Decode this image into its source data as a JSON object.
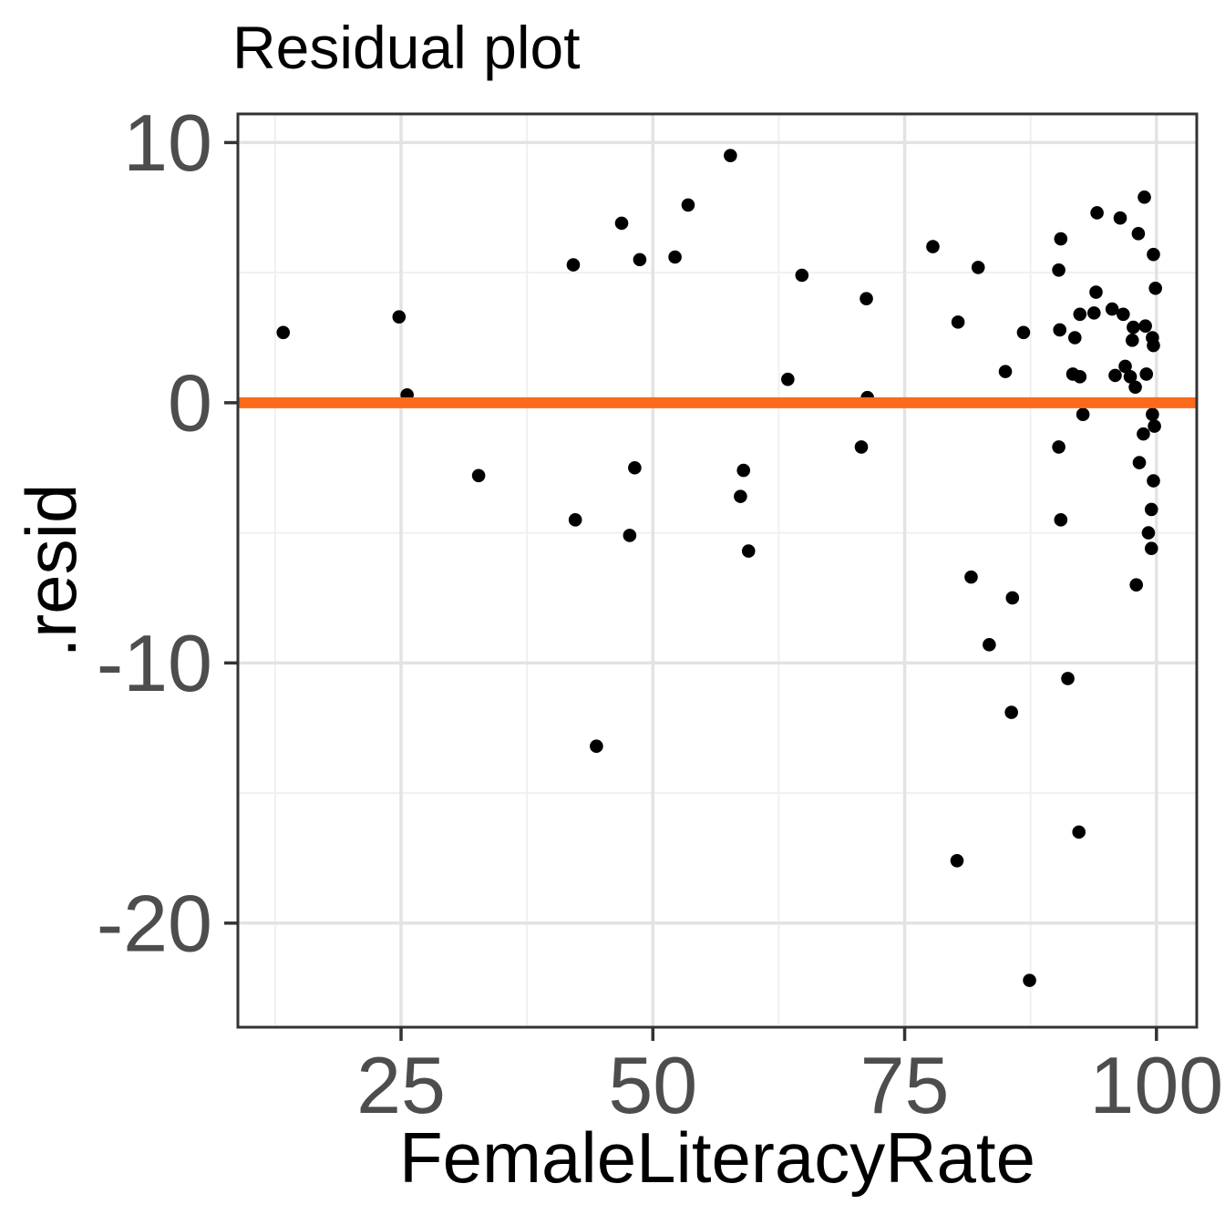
{
  "chart_data": {
    "type": "scatter",
    "title": "Residual plot",
    "xlabel": "FemaleLiteracyRate",
    "ylabel": ".resid",
    "legend": "none",
    "grid": "on",
    "x_axis": {
      "range": [
        8.8,
        104.0
      ],
      "major_ticks": [
        25,
        50,
        75,
        100
      ],
      "tick_labels": [
        "25",
        "50",
        "75",
        "100"
      ],
      "minor_gridlines": [
        12.5,
        37.5,
        62.5,
        87.5
      ]
    },
    "y_axis": {
      "range": [
        -24.0,
        11.1
      ],
      "major_ticks": [
        10,
        0,
        -10,
        -20
      ],
      "tick_labels": [
        "10",
        "0",
        "-10",
        "-20"
      ],
      "minor_gridlines": [
        5,
        -5,
        -15
      ]
    },
    "hline": {
      "y": 0
    },
    "points": [
      [
        13.3,
        2.7
      ],
      [
        24.8,
        3.3
      ],
      [
        25.6,
        0.3
      ],
      [
        32.7,
        -2.8
      ],
      [
        42.1,
        5.3
      ],
      [
        42.3,
        -4.5
      ],
      [
        44.4,
        -13.2
      ],
      [
        46.9,
        6.9
      ],
      [
        47.7,
        -5.1
      ],
      [
        48.2,
        -2.5
      ],
      [
        48.7,
        5.5
      ],
      [
        52.2,
        5.6
      ],
      [
        53.5,
        7.6
      ],
      [
        57.7,
        9.5
      ],
      [
        58.7,
        -3.6
      ],
      [
        59.0,
        -2.6
      ],
      [
        59.5,
        -5.7
      ],
      [
        63.4,
        0.9
      ],
      [
        64.8,
        4.9
      ],
      [
        70.7,
        -1.7
      ],
      [
        71.2,
        4.0
      ],
      [
        71.3,
        0.2
      ],
      [
        77.8,
        6.0
      ],
      [
        80.2,
        -17.6
      ],
      [
        80.3,
        3.1
      ],
      [
        81.6,
        -6.7
      ],
      [
        82.3,
        5.2
      ],
      [
        83.4,
        -9.3
      ],
      [
        85.0,
        1.2
      ],
      [
        85.6,
        -11.9
      ],
      [
        85.7,
        -7.5
      ],
      [
        86.8,
        2.7
      ],
      [
        87.4,
        -22.2
      ],
      [
        90.3,
        5.1
      ],
      [
        90.3,
        -1.7
      ],
      [
        90.4,
        2.8
      ],
      [
        90.5,
        6.3
      ],
      [
        90.5,
        -4.5
      ],
      [
        91.2,
        -10.6
      ],
      [
        91.7,
        1.1
      ],
      [
        91.9,
        2.5
      ],
      [
        92.3,
        -16.5
      ],
      [
        92.4,
        3.4
      ],
      [
        92.4,
        1.0
      ],
      [
        92.7,
        -0.45
      ],
      [
        93.8,
        3.45
      ],
      [
        94.0,
        4.25
      ],
      [
        94.1,
        7.3
      ],
      [
        95.6,
        3.6
      ],
      [
        95.9,
        1.05
      ],
      [
        96.4,
        7.1
      ],
      [
        96.7,
        3.4
      ],
      [
        96.9,
        1.4
      ],
      [
        97.4,
        1.0
      ],
      [
        97.6,
        2.4
      ],
      [
        97.7,
        2.9
      ],
      [
        97.9,
        0.6
      ],
      [
        98.0,
        -7.0
      ],
      [
        98.2,
        6.5
      ],
      [
        98.3,
        -2.3
      ],
      [
        98.7,
        -1.2
      ],
      [
        98.8,
        7.9
      ],
      [
        98.9,
        2.95
      ],
      [
        99.0,
        1.1
      ],
      [
        99.2,
        -5.0
      ],
      [
        99.5,
        -4.1
      ],
      [
        99.5,
        -5.6
      ],
      [
        99.6,
        2.5
      ],
      [
        99.6,
        -0.45
      ],
      [
        99.7,
        5.7
      ],
      [
        99.7,
        2.2
      ],
      [
        99.7,
        -3.0
      ],
      [
        99.8,
        -0.9
      ],
      [
        99.9,
        4.4
      ]
    ],
    "colors": {
      "point": "#000000",
      "zero_line": "#FB6A1A",
      "grid_major": "#e3e3e3",
      "grid_minor": "#f0f0f0",
      "panel_border": "#333333",
      "tick_label": "#4d4d4d",
      "title": "#000000"
    }
  }
}
